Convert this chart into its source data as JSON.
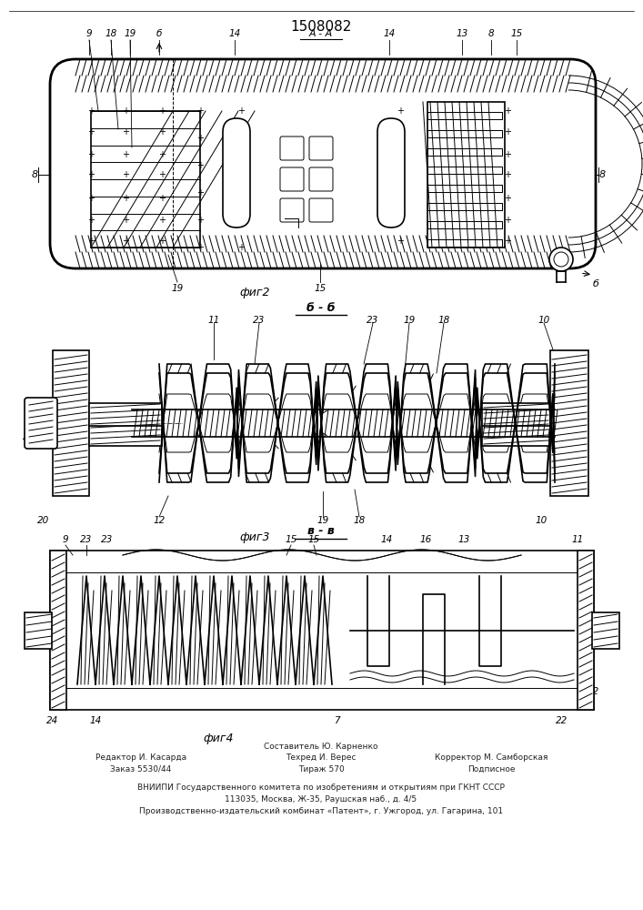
{
  "title": "1508082",
  "bg_color": "#ffffff",
  "line_color": "#000000",
  "fig2_label": "фиг2",
  "fig3_label": "фиг3",
  "fig4_label": "фиг4",
  "footer_line0": "Составитель Ю. Карненко",
  "footer_col1_lines": [
    "Редактор И. Касарда",
    "Заказ 5530/44"
  ],
  "footer_col2_lines": [
    "Техред И. Верес",
    "Тираж 570"
  ],
  "footer_col3_lines": [
    "Корректор М. Самборская",
    "Подписное"
  ],
  "footer_line_vniip": "ВНИИПИ Государственного комитета по изобретениям и открытиям при ГКНТ СССР",
  "footer_line_addr": "113035, Москва, Ж-35, Раушская наб., д. 4/5",
  "footer_line_patent": "Производственно-издательский комбинат «Патент», г. Ужгород, ул. Гагарина, 101"
}
